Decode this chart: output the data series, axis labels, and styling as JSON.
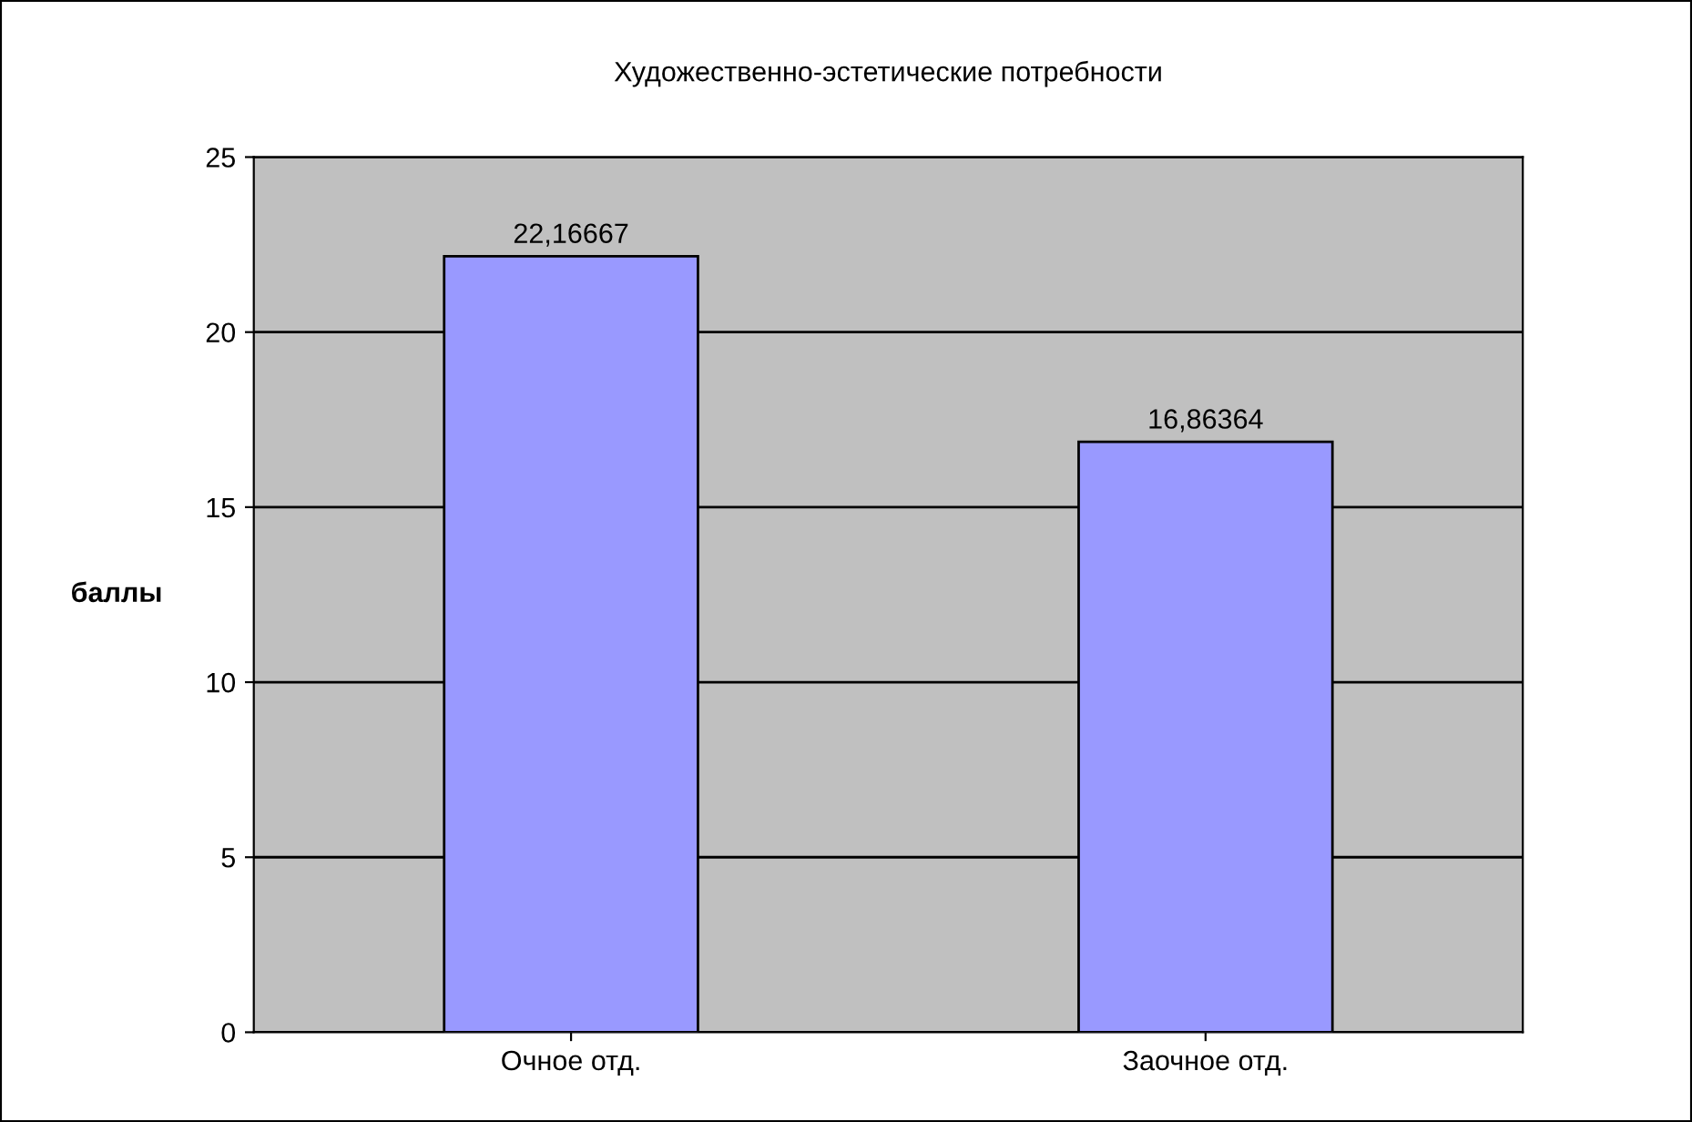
{
  "chart_data": {
    "type": "bar",
    "title": "Художественно-эстетические потребности",
    "ylabel": "баллы",
    "categories": [
      "Очное отд.",
      "Заочное отд."
    ],
    "values": [
      22.16667,
      16.86364
    ],
    "value_labels": [
      "22,16667",
      "16,86364"
    ],
    "color": "#9999ff",
    "ylim": [
      0,
      25
    ],
    "yticks": [
      0,
      5,
      10,
      15,
      20,
      25
    ],
    "grid": "y",
    "legend": false
  }
}
